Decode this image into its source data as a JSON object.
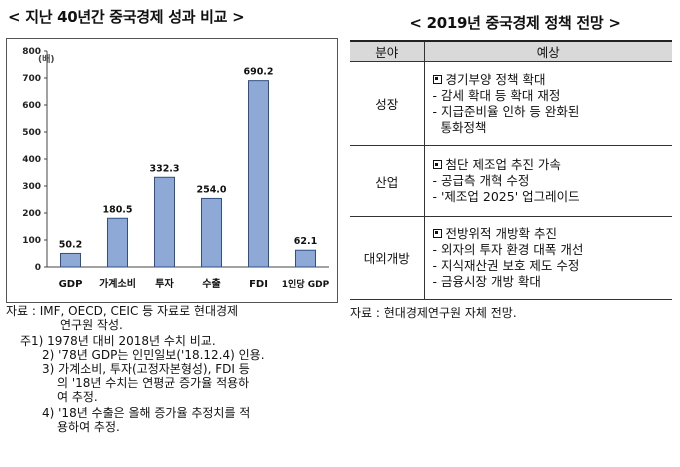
{
  "left_title": "< 지난 40년간 중국경제 성과 비교 >",
  "right_title": "< 2019년 중국경제 정책 전망 >",
  "chart_data": {
    "type": "bar",
    "unit_label": "(배)",
    "categories": [
      "GDP",
      "가계소비",
      "투자",
      "수출",
      "FDI",
      "1인당 GDP"
    ],
    "values": [
      50.2,
      180.5,
      332.3,
      254.0,
      690.2,
      62.1
    ],
    "value_labels": [
      "50.2",
      "180.5",
      "332.3",
      "254.0",
      "690.2",
      "62.1"
    ],
    "ylim": [
      0,
      800
    ],
    "yticks": [
      0,
      100,
      200,
      300,
      400,
      500,
      600,
      700,
      800
    ],
    "bar_color": "#8fa9d6",
    "bar_stroke": "#2f4f86"
  },
  "table": {
    "headers": [
      "분야",
      "예상"
    ],
    "rows": [
      {
        "field": "성장",
        "main": "경기부양 정책 확대",
        "subs": [
          "- 감세 확대 등 확대 재정",
          "- 지급준비율 인하 등 완화된",
          "통화정책"
        ]
      },
      {
        "field": "산업",
        "main": "첨단 제조업 추진 가속",
        "subs": [
          "- 공급측 개혁 수정",
          "- '제조업 2025' 업그레이드"
        ]
      },
      {
        "field": "대외개방",
        "main": "전방위적 개방확 추진",
        "subs": [
          "- 외자의 투자 환경 대폭 개선",
          "- 지식재산권 보호 제도 수정",
          "- 금융시장 개방 확대"
        ]
      }
    ]
  },
  "notes": {
    "source_left_1": "자료 : IMF, OECD, CEIC 등 자료로 현대경제",
    "source_left_2": "연구원 작성.",
    "note1": "주1) 1978년 대비 2018년 수치 비교.",
    "note2": "2) '78년 GDP는 인민일보('18.12.4) 인용.",
    "note3_1": "3) 가계소비, 투자(고정자본형성), FDI 등",
    "note3_2": "의 '18년 수치는 연평균 증가율 적용하",
    "note3_3": "여 추정.",
    "note4_1": "4) '18년 수출은 올해 증가율 추정치를 적",
    "note4_2": "용하여 추정.",
    "source_right": "자료 : 현대경제연구원 자체 전망."
  }
}
